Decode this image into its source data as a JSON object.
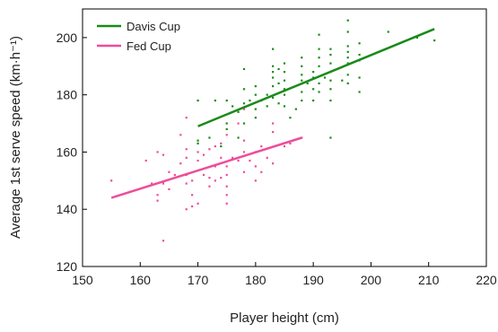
{
  "chart_data": {
    "type": "scatter",
    "title": "",
    "xlabel": "Player height (cm)",
    "ylabel": "Average 1st serve speed (km·h⁻¹)",
    "xlim": [
      150,
      220
    ],
    "ylim": [
      120,
      210
    ],
    "x_ticks": [
      "150",
      "160",
      "170",
      "180",
      "190",
      "200",
      "210",
      "220"
    ],
    "y_ticks": [
      "120",
      "140",
      "160",
      "180",
      "200"
    ],
    "grid": false,
    "legend_position": "top-left",
    "series": [
      {
        "name": "Davis Cup",
        "color": "#1a8a1a",
        "points": [
          [
            170,
            163
          ],
          [
            170,
            164
          ],
          [
            170,
            178
          ],
          [
            172,
            165
          ],
          [
            173,
            178
          ],
          [
            174,
            162
          ],
          [
            175,
            170
          ],
          [
            175,
            178
          ],
          [
            175,
            168
          ],
          [
            176,
            176
          ],
          [
            177,
            165
          ],
          [
            177,
            174
          ],
          [
            178,
            170
          ],
          [
            178,
            177
          ],
          [
            178,
            182
          ],
          [
            178,
            189
          ],
          [
            179,
            178
          ],
          [
            180,
            175
          ],
          [
            180,
            180
          ],
          [
            180,
            183
          ],
          [
            180,
            172
          ],
          [
            181,
            178
          ],
          [
            182,
            176
          ],
          [
            182,
            180
          ],
          [
            183,
            179
          ],
          [
            183,
            183
          ],
          [
            183,
            186
          ],
          [
            183,
            188
          ],
          [
            183,
            190
          ],
          [
            183,
            196
          ],
          [
            184,
            177
          ],
          [
            184,
            184
          ],
          [
            184,
            189
          ],
          [
            185,
            176
          ],
          [
            185,
            180
          ],
          [
            185,
            182
          ],
          [
            185,
            185
          ],
          [
            185,
            188
          ],
          [
            185,
            191
          ],
          [
            186,
            172
          ],
          [
            187,
            175
          ],
          [
            188,
            178
          ],
          [
            188,
            181
          ],
          [
            188,
            185
          ],
          [
            188,
            187
          ],
          [
            188,
            190
          ],
          [
            188,
            193
          ],
          [
            189,
            184
          ],
          [
            190,
            178
          ],
          [
            190,
            182
          ],
          [
            190,
            186
          ],
          [
            190,
            188
          ],
          [
            191,
            181
          ],
          [
            191,
            184
          ],
          [
            191,
            190
          ],
          [
            191,
            193
          ],
          [
            191,
            196
          ],
          [
            191,
            201
          ],
          [
            192,
            186
          ],
          [
            193,
            178
          ],
          [
            193,
            182
          ],
          [
            193,
            185
          ],
          [
            193,
            188
          ],
          [
            193,
            191
          ],
          [
            193,
            194
          ],
          [
            193,
            196
          ],
          [
            193,
            165
          ],
          [
            195,
            185
          ],
          [
            196,
            184
          ],
          [
            196,
            187
          ],
          [
            196,
            191
          ],
          [
            196,
            193
          ],
          [
            196,
            195
          ],
          [
            196,
            197
          ],
          [
            196,
            202
          ],
          [
            196,
            206
          ],
          [
            198,
            181
          ],
          [
            198,
            186
          ],
          [
            198,
            192
          ],
          [
            198,
            194
          ],
          [
            198,
            198
          ],
          [
            203,
            202
          ],
          [
            208,
            200
          ],
          [
            211,
            199
          ]
        ],
        "trend": [
          [
            170,
            169
          ],
          [
            211,
            203
          ]
        ]
      },
      {
        "name": "Fed Cup",
        "color": "#ee4d9b",
        "points": [
          [
            155,
            150
          ],
          [
            161,
            157
          ],
          [
            162,
            149
          ],
          [
            163,
            143
          ],
          [
            163,
            145
          ],
          [
            163,
            160
          ],
          [
            164,
            129
          ],
          [
            164,
            149
          ],
          [
            164,
            159
          ],
          [
            165,
            147
          ],
          [
            165,
            153
          ],
          [
            166,
            152
          ],
          [
            167,
            156
          ],
          [
            167,
            166
          ],
          [
            168,
            140
          ],
          [
            168,
            149
          ],
          [
            168,
            152
          ],
          [
            168,
            158
          ],
          [
            168,
            161
          ],
          [
            168,
            172
          ],
          [
            169,
            141
          ],
          [
            169,
            145
          ],
          [
            169,
            150
          ],
          [
            170,
            142
          ],
          [
            170,
            157
          ],
          [
            170,
            160
          ],
          [
            171,
            152
          ],
          [
            171,
            159
          ],
          [
            172,
            148
          ],
          [
            172,
            151
          ],
          [
            172,
            161
          ],
          [
            173,
            150
          ],
          [
            173,
            155
          ],
          [
            173,
            162
          ],
          [
            174,
            151
          ],
          [
            174,
            158
          ],
          [
            174,
            163
          ],
          [
            175,
            142
          ],
          [
            175,
            145
          ],
          [
            175,
            148
          ],
          [
            175,
            152
          ],
          [
            175,
            155
          ],
          [
            175,
            166
          ],
          [
            176,
            158
          ],
          [
            177,
            157
          ],
          [
            177,
            170
          ],
          [
            178,
            153
          ],
          [
            178,
            160
          ],
          [
            178,
            164
          ],
          [
            178,
            175
          ],
          [
            179,
            157
          ],
          [
            180,
            150
          ],
          [
            180,
            155
          ],
          [
            180,
            160
          ],
          [
            181,
            153
          ],
          [
            181,
            162
          ],
          [
            182,
            158
          ],
          [
            183,
            156
          ],
          [
            183,
            167
          ],
          [
            183,
            170
          ],
          [
            185,
            162
          ],
          [
            186,
            163
          ],
          [
            188,
            165
          ]
        ],
        "trend": [
          [
            155,
            144
          ],
          [
            188,
            165
          ]
        ]
      }
    ]
  }
}
